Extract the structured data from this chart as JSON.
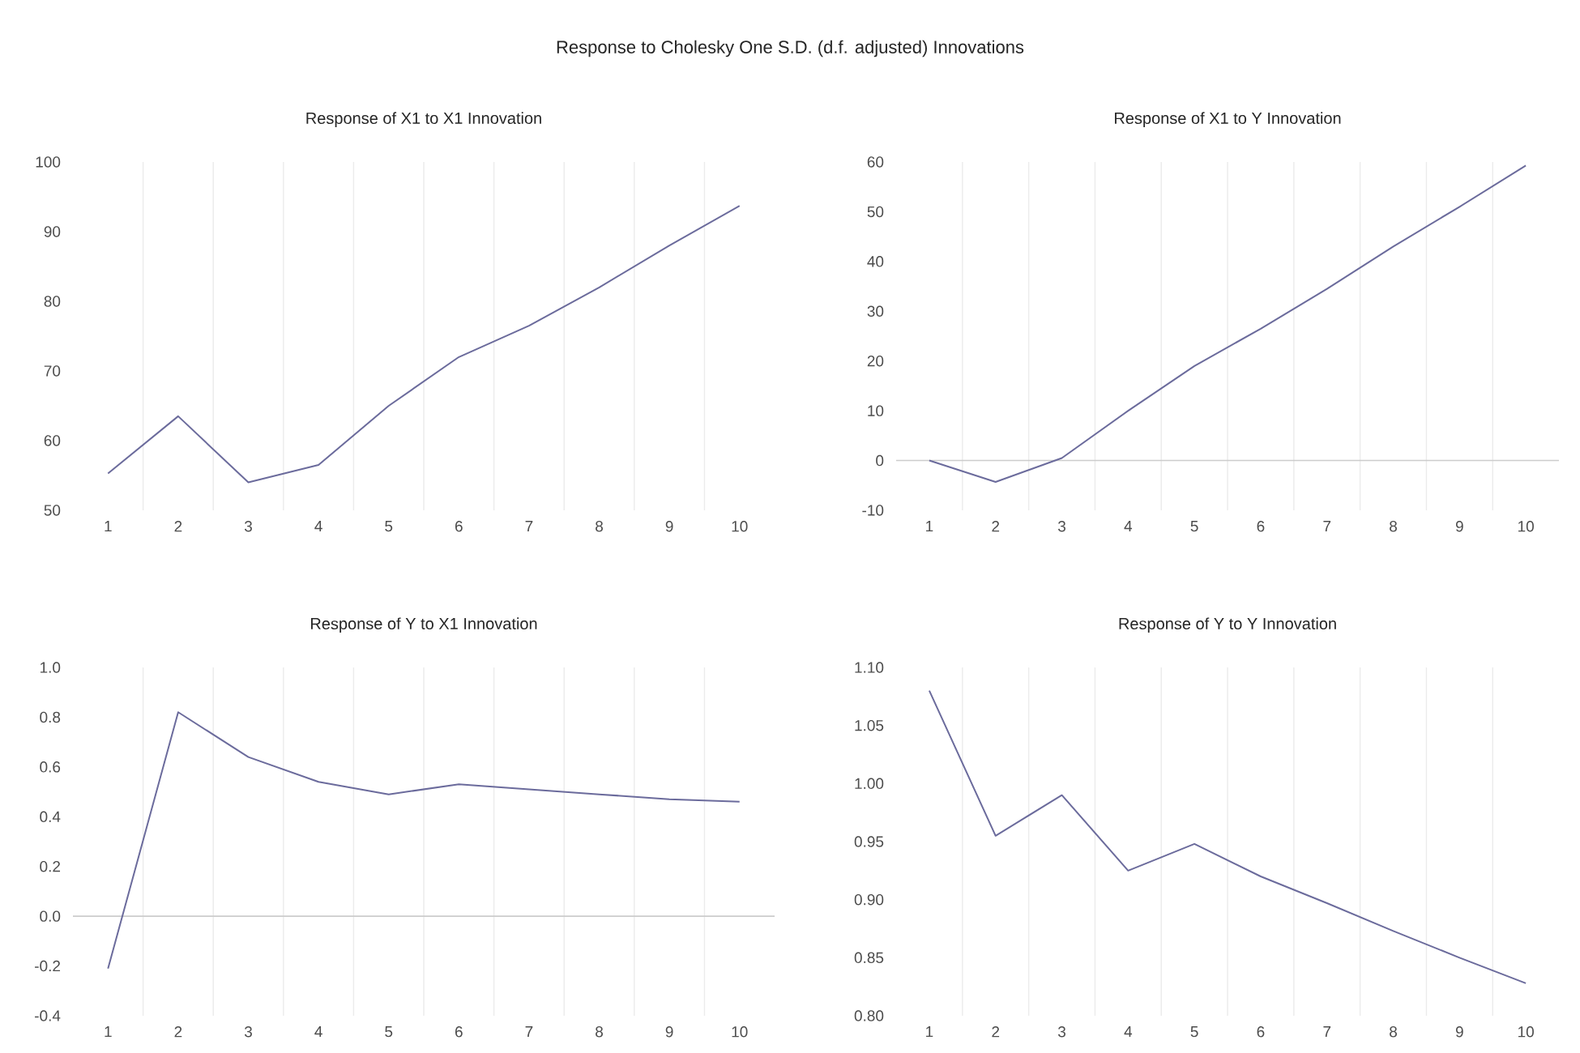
{
  "chart_data": [
    {
      "type": "line",
      "title": "Response of X1 to X1 Innovation",
      "annotations": [
        "Response to Cholesky One S.D. (d.f. adjusted) Innovations"
      ],
      "categories": [
        "1",
        "2",
        "3",
        "4",
        "5",
        "6",
        "7",
        "8",
        "9",
        "10"
      ],
      "series": [
        {
          "color": "#6b6b9c",
          "values": [
            55.3,
            63.5,
            54,
            56.5,
            65,
            72,
            76.5,
            82,
            88,
            93.7
          ]
        }
      ],
      "ylim": [
        50,
        100
      ],
      "yticks": [
        50,
        60,
        70,
        80,
        90,
        100
      ],
      "grid": "x"
    },
    {
      "type": "line",
      "title": "Response of X1 to Y Innovation",
      "categories": [
        "1",
        "2",
        "3",
        "4",
        "5",
        "6",
        "7",
        "8",
        "9",
        "10"
      ],
      "series": [
        {
          "color": "#6b6b9c",
          "values": [
            0,
            -4.3,
            0.5,
            10,
            19,
            26.5,
            34.5,
            43,
            51,
            59.3
          ]
        }
      ],
      "ylim": [
        -10,
        60
      ],
      "yticks": [
        -10,
        0,
        10,
        20,
        30,
        40,
        50,
        60
      ],
      "grid": "x"
    },
    {
      "type": "line",
      "title": "Response of Y to X1 Innovation",
      "categories": [
        "1",
        "2",
        "3",
        "4",
        "5",
        "6",
        "7",
        "8",
        "9",
        "10"
      ],
      "series": [
        {
          "color": "#6b6b9c",
          "values": [
            -0.21,
            0.82,
            0.64,
            0.54,
            0.49,
            0.53,
            0.51,
            0.49,
            0.47,
            0.46
          ]
        }
      ],
      "ylim": [
        -0.4,
        1.0
      ],
      "yticks": [
        {
          "value": -0.4,
          "label": "-0.4"
        },
        {
          "value": -0.2,
          "label": "-0.2"
        },
        {
          "value": 0,
          "label": "0.0"
        },
        {
          "value": 0.2,
          "label": "0.2"
        },
        {
          "value": 0.4,
          "label": "0.4"
        },
        {
          "value": 0.6,
          "label": "0.6"
        },
        {
          "value": 0.8,
          "label": "0.8"
        },
        {
          "value": 1.0,
          "label": "1.0"
        }
      ],
      "grid": "x"
    },
    {
      "type": "line",
      "title": "Response of Y to Y Innovation",
      "categories": [
        "1",
        "2",
        "3",
        "4",
        "5",
        "6",
        "7",
        "8",
        "9",
        "10"
      ],
      "series": [
        {
          "color": "#6b6b9c",
          "values": [
            1.08,
            0.955,
            0.99,
            0.925,
            0.948,
            0.92,
            0.897,
            0.873,
            0.85,
            0.828
          ]
        }
      ],
      "ylim": [
        0.8,
        1.1
      ],
      "yticks": [
        {
          "value": 0.8,
          "label": "0.80"
        },
        {
          "value": 0.85,
          "label": "0.85"
        },
        {
          "value": 0.9,
          "label": "0.90"
        },
        {
          "value": 0.95,
          "label": "0.95"
        },
        {
          "value": 1.0,
          "label": "1.00"
        },
        {
          "value": 1.05,
          "label": "1.05"
        },
        {
          "value": 1.1,
          "label": "1.10"
        }
      ],
      "grid": "x"
    }
  ]
}
